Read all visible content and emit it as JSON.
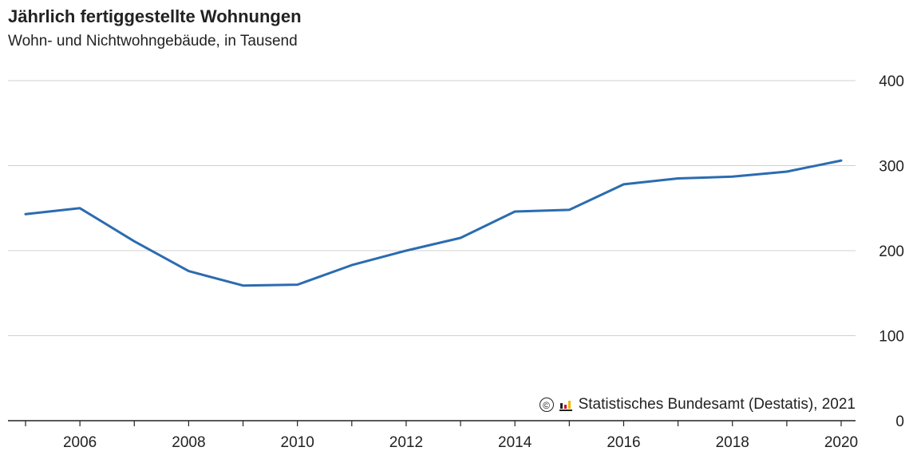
{
  "title": "Jährlich fertiggestellte Wohnungen",
  "subtitle": "Wohn- und Nichtwohngebäude, in Tausend",
  "source": "Statistisches Bundesamt (Destatis), 2021",
  "copyright_symbol": "©",
  "logo_icon": "destatis-logo-icon",
  "colors": {
    "line": "#2b6cb0",
    "grid": "#d0d0d0",
    "axis": "#222222",
    "logo_red": "#c8102e",
    "logo_gold": "#f2b600",
    "logo_dark": "#222222"
  },
  "chart_data": {
    "type": "line",
    "title": "Jährlich fertiggestellte Wohnungen",
    "subtitle": "Wohn- und Nichtwohngebäude, in Tausend",
    "xlabel": "",
    "ylabel": "",
    "x": [
      2005,
      2006,
      2007,
      2008,
      2009,
      2010,
      2011,
      2012,
      2013,
      2014,
      2015,
      2016,
      2017,
      2018,
      2019,
      2020
    ],
    "series": [
      {
        "values": [
          243,
          250,
          211,
          176,
          159,
          160,
          183,
          200,
          215,
          246,
          248,
          278,
          285,
          287,
          293,
          306
        ]
      }
    ],
    "xlim": [
      2005,
      2020
    ],
    "ylim": [
      0,
      400
    ],
    "y_ticks": [
      "0",
      "100",
      "200",
      "300",
      "400"
    ],
    "x_ticks": [
      "2006",
      "2008",
      "2010",
      "2012",
      "2014",
      "2016",
      "2018",
      "2020"
    ],
    "y_axis_side": "right",
    "grid": true,
    "legend": "none"
  }
}
